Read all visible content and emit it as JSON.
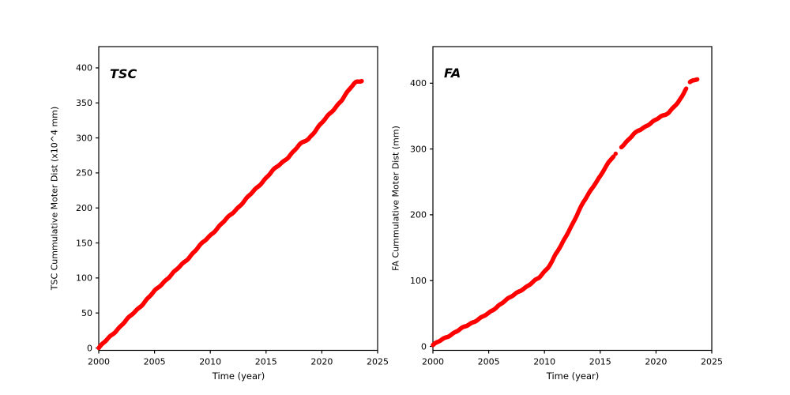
{
  "figure": {
    "background": "#ffffff",
    "axis_color": "#000000",
    "tick_label_color": "#000000"
  },
  "chart_data": [
    {
      "type": "scatter",
      "annotation": "TSC",
      "xlabel": "Time (year)",
      "ylabel": "TSC Cummulative Moter Dist (x10^4 mm)",
      "marker_color": "#ff0000",
      "xlim": [
        2000,
        2025
      ],
      "ylim": [
        -3.4,
        430.4
      ],
      "xticks": [
        2000,
        2005,
        2010,
        2015,
        2020,
        2025
      ],
      "yticks": [
        0,
        50,
        100,
        150,
        200,
        250,
        300,
        350,
        400
      ],
      "grid": false,
      "legend": null,
      "gaps": [],
      "anchors": [
        [
          2000.0,
          0
        ],
        [
          2000.5,
          8
        ],
        [
          2001,
          16
        ],
        [
          2002,
          32
        ],
        [
          2003,
          48
        ],
        [
          2004,
          64
        ],
        [
          2005,
          81
        ],
        [
          2006,
          97
        ],
        [
          2007,
          112
        ],
        [
          2008,
          128
        ],
        [
          2009,
          145
        ],
        [
          2010,
          161
        ],
        [
          2011,
          177
        ],
        [
          2012,
          193
        ],
        [
          2013,
          209
        ],
        [
          2014,
          226
        ],
        [
          2015,
          243
        ],
        [
          2015.6,
          253
        ],
        [
          2016,
          259
        ],
        [
          2016.5,
          266
        ],
        [
          2017,
          273
        ],
        [
          2017.5,
          281
        ],
        [
          2018,
          290
        ],
        [
          2018.4,
          295
        ],
        [
          2018.8,
          299
        ],
        [
          2019.2,
          306
        ],
        [
          2019.6,
          314
        ],
        [
          2020,
          321
        ],
        [
          2020.5,
          331
        ],
        [
          2021,
          340
        ],
        [
          2021.4,
          347
        ],
        [
          2021.8,
          354
        ],
        [
          2022.2,
          363
        ],
        [
          2022.6,
          372
        ],
        [
          2022.9,
          378
        ],
        [
          2023.1,
          380.5
        ],
        [
          2023.35,
          381.5
        ],
        [
          2023.6,
          382
        ]
      ]
    },
    {
      "type": "scatter",
      "annotation": "FA",
      "xlabel": "Time (year)",
      "ylabel": "FA Cummulative Moter Dist (mm)",
      "marker_color": "#ff0000",
      "xlim": [
        2000,
        2025
      ],
      "ylim": [
        -6,
        455.6
      ],
      "xticks": [
        2000,
        2005,
        2010,
        2015,
        2020,
        2025
      ],
      "yticks": [
        0,
        100,
        200,
        300,
        400
      ],
      "grid": false,
      "legend": null,
      "gaps": [
        [
          2016.225,
          2016.355
        ],
        [
          2016.4,
          2016.88
        ],
        [
          2022.72,
          2023.03
        ]
      ],
      "anchors": [
        [
          2000.0,
          2
        ],
        [
          2000.5,
          7
        ],
        [
          2001,
          12
        ],
        [
          2001.5,
          17
        ],
        [
          2002,
          22
        ],
        [
          2003,
          31
        ],
        [
          2004,
          41
        ],
        [
          2005,
          50
        ],
        [
          2005.5,
          57
        ],
        [
          2006,
          64
        ],
        [
          2006.4,
          69
        ],
        [
          2007,
          75
        ],
        [
          2007.5,
          81
        ],
        [
          2008,
          87
        ],
        [
          2008.5,
          92
        ],
        [
          2009,
          98
        ],
        [
          2009.5,
          104
        ],
        [
          2010,
          114
        ],
        [
          2010.3,
          120
        ],
        [
          2010.7,
          130
        ],
        [
          2011,
          140
        ],
        [
          2011.5,
          153
        ],
        [
          2012,
          170
        ],
        [
          2012.5,
          186
        ],
        [
          2013,
          203
        ],
        [
          2013.5,
          219
        ],
        [
          2014,
          233
        ],
        [
          2014.5,
          247
        ],
        [
          2015,
          259
        ],
        [
          2015.4,
          270
        ],
        [
          2015.8,
          280
        ],
        [
          2016.1,
          287
        ],
        [
          2016.2,
          289
        ],
        [
          2016.9,
          304
        ],
        [
          2017.2,
          308
        ],
        [
          2017.6,
          315
        ],
        [
          2018.0,
          322
        ],
        [
          2018.4,
          328
        ],
        [
          2018.8,
          332
        ],
        [
          2019.2,
          336
        ],
        [
          2019.6,
          340
        ],
        [
          2020.0,
          344
        ],
        [
          2020.4,
          349
        ],
        [
          2020.8,
          352
        ],
        [
          2021.2,
          357
        ],
        [
          2021.6,
          364
        ],
        [
          2022.0,
          371
        ],
        [
          2022.3,
          378
        ],
        [
          2022.45,
          383
        ],
        [
          2022.6,
          389
        ],
        [
          2022.7,
          392
        ],
        [
          2023.05,
          402
        ],
        [
          2023.2,
          404
        ],
        [
          2023.35,
          405.5
        ],
        [
          2023.55,
          406
        ],
        [
          2023.7,
          406
        ]
      ]
    }
  ]
}
